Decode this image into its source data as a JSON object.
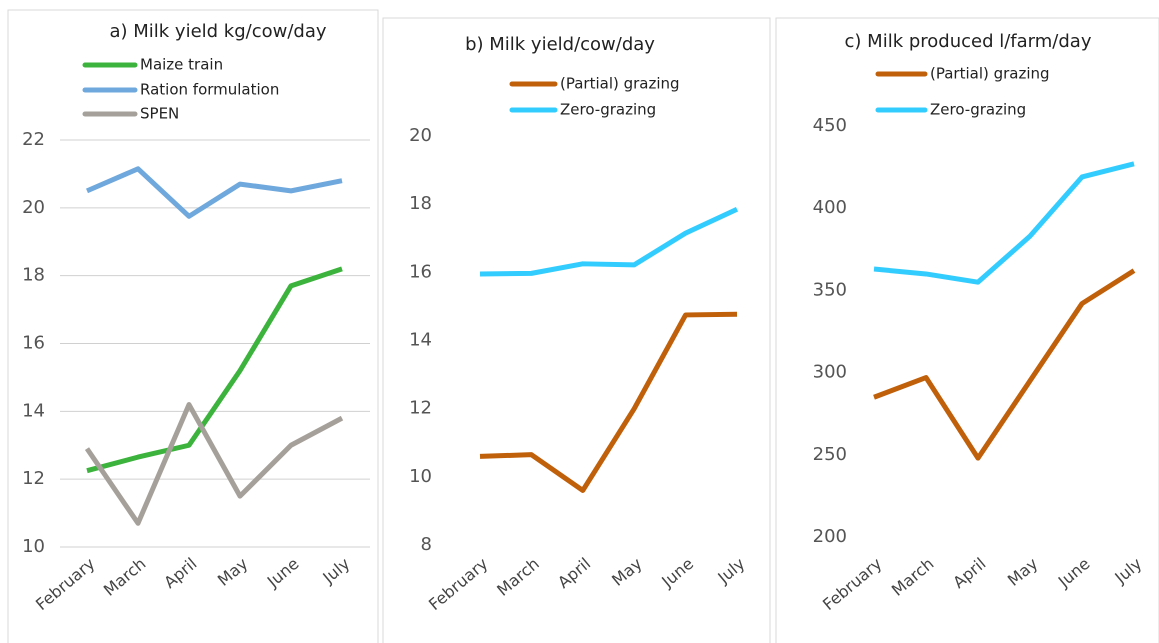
{
  "chart_data": [
    {
      "type": "line",
      "title": "a) Milk yield kg/cow/day",
      "categories": [
        "February",
        "March",
        "April",
        "May",
        "June",
        "July"
      ],
      "series": [
        {
          "name": "Maize train",
          "color": "#3cb33c",
          "values": [
            12.25,
            12.65,
            13.0,
            15.2,
            17.7,
            18.2
          ]
        },
        {
          "name": "Ration formulation",
          "color": "#6fa8dc",
          "values": [
            20.5,
            21.15,
            19.75,
            20.7,
            20.5,
            20.8
          ]
        },
        {
          "name": "SPEN",
          "color": "#a6a09a",
          "values": [
            12.9,
            10.7,
            14.2,
            11.5,
            13.0,
            13.8
          ]
        }
      ],
      "ylim": [
        10,
        22
      ],
      "yticks": [
        10,
        12,
        14,
        16,
        18,
        20,
        22
      ],
      "grid": true
    },
    {
      "type": "line",
      "title": "b) Milk yield/cow/day",
      "categories": [
        "February",
        "March",
        "April",
        "May",
        "June",
        "July"
      ],
      "series": [
        {
          "name": "(Partial) grazing",
          "color": "#c0600a",
          "values": [
            10.6,
            10.65,
            9.6,
            12.0,
            14.75,
            14.77
          ]
        },
        {
          "name": "Zero-grazing",
          "color": "#33ccff",
          "values": [
            15.95,
            15.97,
            16.25,
            16.22,
            17.15,
            17.85
          ]
        }
      ],
      "ylim": [
        8,
        20
      ],
      "yticks": [
        8,
        10,
        12,
        14,
        16,
        18,
        20
      ],
      "grid": false
    },
    {
      "type": "line",
      "title": "c) Milk produced l/farm/day",
      "categories": [
        "February",
        "March",
        "April",
        "May",
        "June",
        "July"
      ],
      "series": [
        {
          "name": "(Partial) grazing",
          "color": "#c0600a",
          "values": [
            285,
            297,
            248,
            295,
            342,
            362
          ]
        },
        {
          "name": "Zero-grazing",
          "color": "#33ccff",
          "values": [
            363,
            360,
            355,
            383,
            419,
            427
          ]
        }
      ],
      "ylim": [
        200,
        450
      ],
      "yticks": [
        200,
        250,
        300,
        350,
        400,
        450
      ],
      "grid": false
    }
  ]
}
